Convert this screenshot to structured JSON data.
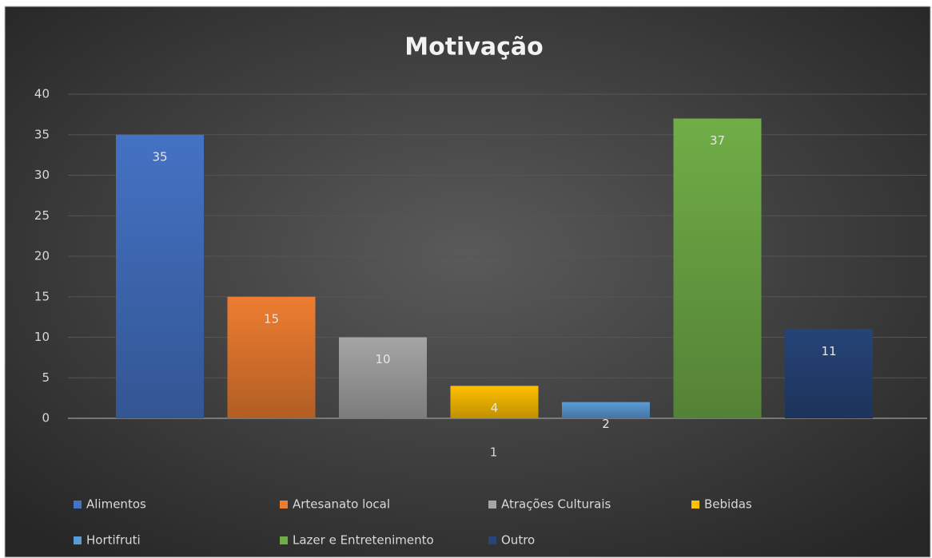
{
  "chart_data": {
    "type": "bar",
    "title": "Motivação",
    "categories": [
      "1"
    ],
    "series": [
      {
        "name": "Alimentos",
        "color": "#4472c4",
        "values": [
          35
        ]
      },
      {
        "name": "Artesanato local",
        "color": "#ed7d31",
        "values": [
          15
        ]
      },
      {
        "name": "Atrações Culturais",
        "color": "#a5a5a5",
        "values": [
          10
        ]
      },
      {
        "name": "Bebidas",
        "color": "#ffc000",
        "values": [
          4
        ]
      },
      {
        "name": "Hortifruti",
        "color": "#5b9bd5",
        "values": [
          2
        ]
      },
      {
        "name": "Lazer e Entretenimento",
        "color": "#70ad47",
        "values": [
          37
        ]
      },
      {
        "name": "Outro",
        "color": "#264478",
        "values": [
          11
        ]
      }
    ],
    "ylim": [
      0,
      40
    ],
    "yticks": [
      0,
      5,
      10,
      15,
      20,
      25,
      30,
      35,
      40
    ],
    "grid": true,
    "legend": "bottom"
  }
}
